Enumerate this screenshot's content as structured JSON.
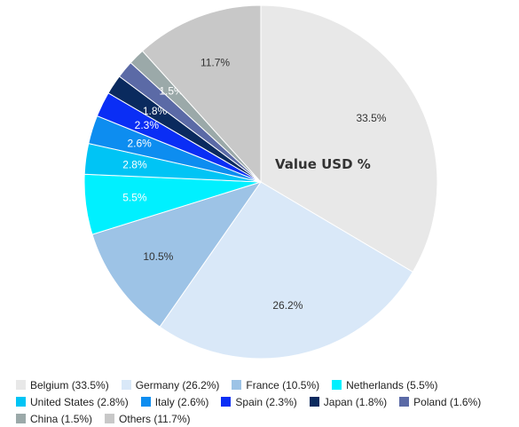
{
  "chart_data": {
    "type": "pie",
    "title": "Value USD %",
    "slices": [
      {
        "label": "Belgium",
        "value": 33.5,
        "value_label": "33.5%",
        "legend": "Belgium (33.5%)",
        "color": "#e8e8e8",
        "label_color": "#333333"
      },
      {
        "label": "Germany",
        "value": 26.2,
        "value_label": "26.2%",
        "legend": "Germany (26.2%)",
        "color": "#d9e8f8",
        "label_color": "#333333"
      },
      {
        "label": "France",
        "value": 10.5,
        "value_label": "10.5%",
        "legend": "France (10.5%)",
        "color": "#9dc3e6",
        "label_color": "#333333"
      },
      {
        "label": "Netherlands",
        "value": 5.5,
        "value_label": "5.5%",
        "legend": "Netherlands (5.5%)",
        "color": "#00f0ff",
        "label_color": "#ffffff"
      },
      {
        "label": "United States",
        "value": 2.8,
        "value_label": "2.8%",
        "legend": "United States (2.8%)",
        "color": "#00c4f5",
        "label_color": "#ffffff"
      },
      {
        "label": "Italy",
        "value": 2.6,
        "value_label": "2.6%",
        "legend": "Italy (2.6%)",
        "color": "#0d8df0",
        "label_color": "#ffffff"
      },
      {
        "label": "Spain",
        "value": 2.3,
        "value_label": "2.3%",
        "legend": "Spain (2.3%)",
        "color": "#0a2ef5",
        "label_color": "#ffffff"
      },
      {
        "label": "Japan",
        "value": 1.8,
        "value_label": "1.8%",
        "legend": "Japan (1.8%)",
        "color": "#0a2a5e",
        "label_color": "#ffffff"
      },
      {
        "label": "Poland",
        "value": 1.6,
        "value_label": "",
        "legend": "Poland (1.6%)",
        "color": "#5b6aa6",
        "label_color": "#ffffff"
      },
      {
        "label": "China",
        "value": 1.5,
        "value_label": "1.5%",
        "legend": "China (1.5%)",
        "color": "#9ba9a9",
        "label_color": "#ffffff"
      },
      {
        "label": "Others",
        "value": 11.7,
        "value_label": "11.7%",
        "legend": "Others (11.7%)",
        "color": "#c8c8c8",
        "label_color": "#333333"
      }
    ],
    "start": "12 o'clock",
    "direction": "clockwise",
    "legend_position": "bottom"
  }
}
